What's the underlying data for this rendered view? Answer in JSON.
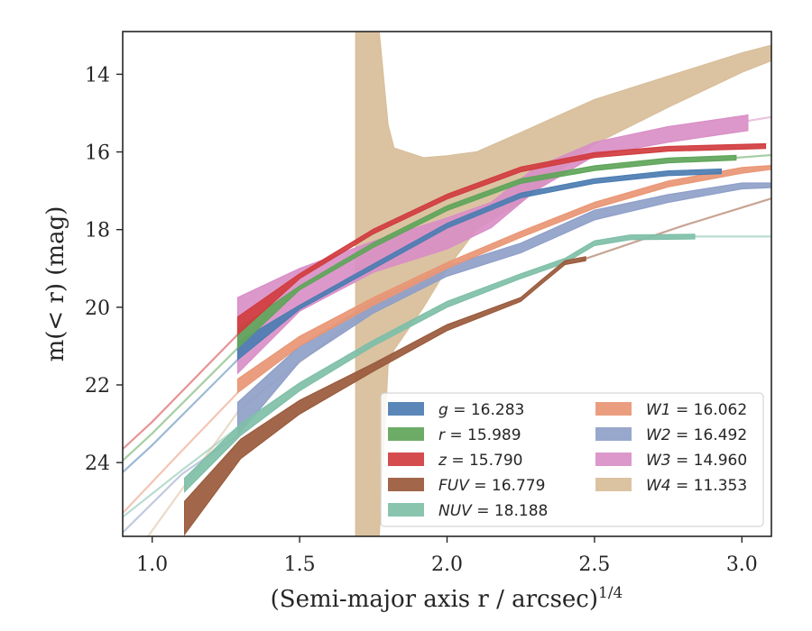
{
  "chart_data": {
    "type": "line",
    "title": "",
    "xlabel": "(Semi-major axis r / arcsec)",
    "xlabel_superscript": "1/4",
    "ylabel": "m(< r) (mag)",
    "xlim": [
      0.9,
      3.1
    ],
    "ylim": [
      25.9,
      12.9
    ],
    "y_inverted": true,
    "x_ticks": [
      1.0,
      1.5,
      2.0,
      2.5,
      3.0
    ],
    "x_tick_labels": [
      "1.0",
      "1.5",
      "2.0",
      "2.5",
      "3.0"
    ],
    "y_ticks": [
      14,
      16,
      18,
      20,
      22,
      24
    ],
    "y_tick_labels": [
      "14",
      "16",
      "18",
      "20",
      "22",
      "24"
    ],
    "grid": false,
    "legend_position": "lower-right",
    "series": [
      {
        "name": "g = 16.283",
        "label_var": "g",
        "label_val": "16.283",
        "color": "#4c7db2",
        "extrap": [
          [
            0.9,
            24.25
          ],
          [
            1.0,
            23.55
          ],
          [
            1.29,
            21.35
          ]
        ],
        "band": [
          [
            1.29,
            21.35,
            20.9
          ],
          [
            1.5,
            20.05,
            19.95
          ],
          [
            1.75,
            18.95
          ],
          [
            2.0,
            17.9
          ],
          [
            2.25,
            17.12
          ],
          [
            2.5,
            16.75
          ],
          [
            2.75,
            16.55
          ],
          [
            2.93,
            16.5
          ]
        ]
      },
      {
        "name": "r = 15.989",
        "label_var": "r",
        "label_val": "15.989",
        "color": "#5fa55a",
        "extrap": [
          [
            0.9,
            23.95
          ],
          [
            1.0,
            23.25
          ],
          [
            1.29,
            21.05
          ]
        ],
        "band": [
          [
            1.29,
            21.05,
            20.55
          ],
          [
            1.5,
            19.55,
            19.45
          ],
          [
            1.75,
            18.4
          ],
          [
            2.0,
            17.45
          ],
          [
            2.25,
            16.75
          ],
          [
            2.5,
            16.42
          ],
          [
            2.75,
            16.22
          ],
          [
            2.98,
            16.15
          ]
        ],
        "tail": [
          [
            2.98,
            16.15
          ],
          [
            3.1,
            16.08
          ]
        ]
      },
      {
        "name": "z = 15.790",
        "label_var": "z",
        "label_val": "15.790",
        "color": "#d13d3f",
        "extrap": [
          [
            0.9,
            23.65
          ],
          [
            1.0,
            22.95
          ],
          [
            1.29,
            20.7
          ]
        ],
        "band": [
          [
            1.29,
            20.7,
            20.25
          ],
          [
            1.5,
            19.2
          ],
          [
            1.75,
            18.05
          ],
          [
            2.0,
            17.15
          ],
          [
            2.25,
            16.45
          ],
          [
            2.5,
            16.08
          ],
          [
            2.75,
            15.92
          ],
          [
            3.08,
            15.85
          ]
        ]
      },
      {
        "name": "FUV = 16.779",
        "label_var": "FUV",
        "label_val": "16.779",
        "color": "#9a5a3c",
        "extrap": [
          [
            2.45,
            18.8
          ],
          [
            2.8,
            17.9
          ],
          [
            3.1,
            17.2
          ]
        ],
        "band": [
          [
            1.11,
            25.85,
            25.0
          ],
          [
            1.3,
            23.9,
            23.4
          ],
          [
            1.5,
            22.75,
            22.4
          ],
          [
            1.75,
            21.65,
            21.45
          ],
          [
            2.0,
            20.6,
            20.45
          ],
          [
            2.25,
            19.85,
            19.75
          ],
          [
            2.32,
            19.4,
            19.3
          ],
          [
            2.4,
            18.9,
            18.8
          ],
          [
            2.47,
            18.8,
            18.7
          ]
        ]
      },
      {
        "name": "NUV = 18.188",
        "label_var": "NUV",
        "label_val": "18.188",
        "color": "#7fbfa8",
        "extrap": [
          [
            0.9,
            25.4
          ],
          [
            1.1,
            24.2
          ],
          [
            1.29,
            23.1
          ]
        ],
        "band": [
          [
            1.11,
            24.75,
            24.4
          ],
          [
            1.3,
            23.3,
            23.0
          ],
          [
            1.5,
            22.15,
            21.95
          ],
          [
            1.75,
            21.0,
            20.85
          ],
          [
            2.0,
            20.0,
            19.85
          ],
          [
            2.25,
            19.2
          ],
          [
            2.4,
            18.8
          ],
          [
            2.5,
            18.35
          ],
          [
            2.62,
            18.2
          ],
          [
            2.84,
            18.18
          ]
        ],
        "tail": [
          [
            2.84,
            18.18
          ],
          [
            3.1,
            18.18
          ]
        ]
      },
      {
        "name": "W1 = 16.062",
        "label_var": "W1",
        "label_val": "16.062",
        "color": "#e99674",
        "extrap": [
          [
            0.9,
            25.3
          ],
          [
            1.1,
            23.7
          ],
          [
            1.29,
            22.2
          ]
        ],
        "band": [
          [
            1.29,
            22.2,
            21.85
          ],
          [
            1.5,
            21.0,
            20.75
          ],
          [
            1.75,
            19.95,
            19.75
          ],
          [
            2.0,
            19.0,
            18.85
          ],
          [
            2.25,
            18.2,
            18.05
          ],
          [
            2.5,
            17.45,
            17.3
          ],
          [
            2.75,
            16.9,
            16.75
          ],
          [
            3.0,
            16.55,
            16.4
          ],
          [
            3.1,
            16.45,
            16.35
          ]
        ]
      },
      {
        "name": "W2 = 16.492",
        "label_var": "W2",
        "label_val": "16.492",
        "color": "#8f9fc8",
        "extrap": [
          [
            0.9,
            25.8
          ],
          [
            1.1,
            24.3
          ],
          [
            1.29,
            23.3
          ]
        ],
        "band": [
          [
            1.29,
            23.3,
            22.45
          ],
          [
            1.5,
            21.4,
            21.0
          ],
          [
            1.75,
            20.15,
            19.85
          ],
          [
            2.0,
            19.2,
            18.95
          ],
          [
            2.25,
            18.6,
            18.35
          ],
          [
            2.5,
            17.75,
            17.5
          ],
          [
            2.75,
            17.3,
            17.1
          ],
          [
            3.0,
            16.95,
            16.8
          ],
          [
            3.1,
            16.92,
            16.8
          ]
        ]
      },
      {
        "name": "W3 = 14.960",
        "label_var": "W3",
        "label_val": "14.960",
        "color": "#d98fc6",
        "extrap": [
          [
            3.02,
            15.2
          ],
          [
            3.1,
            15.1
          ]
        ],
        "band": [
          [
            1.29,
            21.7,
            19.75
          ],
          [
            1.5,
            20.1,
            19.0
          ],
          [
            1.75,
            19.1,
            18.3
          ],
          [
            2.0,
            18.5,
            17.7
          ],
          [
            2.15,
            17.95,
            17.3
          ],
          [
            2.3,
            17.0,
            16.4
          ],
          [
            2.5,
            16.1,
            15.75
          ],
          [
            2.75,
            15.75,
            15.35
          ],
          [
            3.02,
            15.45,
            15.05
          ]
        ]
      },
      {
        "name": "W4 = 11.353",
        "label_var": "W4",
        "label_val": "11.353",
        "color": "#d8be9a",
        "extrap": [
          [
            0.9,
            26.8
          ],
          [
            1.3,
            22.6
          ],
          [
            1.69,
            20.3
          ]
        ],
        "band": [
          [
            1.69,
            25.9,
            12.9
          ],
          [
            1.77,
            25.9,
            12.9
          ],
          [
            1.8,
            21.5,
            15.3
          ],
          [
            1.82,
            21.1,
            15.9
          ],
          [
            1.92,
            20.0,
            16.15
          ],
          [
            2.0,
            19.0,
            16.1
          ],
          [
            2.1,
            18.0,
            16.0
          ],
          [
            2.25,
            17.3,
            15.5
          ],
          [
            2.5,
            15.8,
            14.65
          ],
          [
            2.75,
            14.85,
            14.05
          ],
          [
            3.0,
            13.95,
            13.45
          ],
          [
            3.1,
            13.65,
            13.25
          ]
        ]
      }
    ]
  }
}
